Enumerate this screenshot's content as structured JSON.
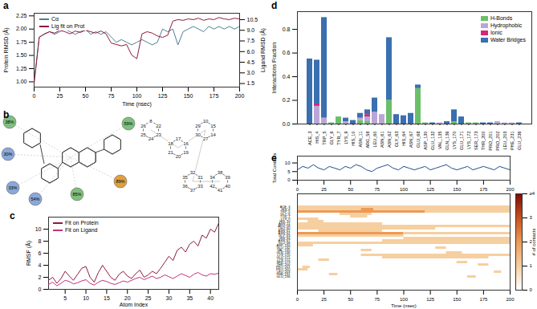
{
  "chart_data": [
    {
      "type": "line",
      "title": "a",
      "x": [
        0,
        5,
        10,
        15,
        20,
        25,
        30,
        35,
        40,
        45,
        50,
        55,
        60,
        65,
        70,
        75,
        80,
        85,
        90,
        95,
        100,
        105,
        110,
        115,
        120,
        125,
        130,
        135,
        140,
        145,
        150,
        155,
        160,
        165,
        170,
        175,
        180,
        185,
        190,
        195,
        200
      ],
      "xlim": [
        0,
        200
      ],
      "xticks": [
        0,
        25,
        50,
        75,
        100,
        125,
        150,
        175,
        200
      ],
      "xlabel": "Time (nsec)",
      "ylabel": "Protein RMSD (Å)",
      "ylim": [
        0.9,
        2.3
      ],
      "yticks": [
        {
          "value": 1,
          "label": "1.00"
        },
        {
          "value": 1.25,
          "label": "1.25"
        },
        {
          "value": 1.5,
          "label": "1.50"
        },
        {
          "value": 1.75,
          "label": "1.75"
        },
        {
          "value": 2,
          "label": "2.00"
        },
        {
          "value": 2.25,
          "label": "2.25"
        }
      ],
      "y2label": "Ligand RMSD (Å)",
      "y2lim": [
        1,
        11.4
      ],
      "y2ticks": [
        1.5,
        {
          "value": 3,
          "label": "3.0"
        },
        4.5,
        {
          "value": 6,
          "label": "6.0"
        },
        7.5,
        {
          "value": 9,
          "label": "9.0"
        },
        10.5
      ],
      "legend": "top-left",
      "series": [
        {
          "name": "Cα",
          "color": "#4d7f91",
          "values": [
            1.0,
            1.85,
            1.9,
            1.95,
            1.9,
            1.95,
            2.0,
            1.95,
            1.9,
            1.95,
            2.0,
            1.9,
            1.95,
            1.9,
            1.95,
            1.85,
            1.75,
            1.8,
            1.75,
            1.7,
            1.75,
            1.8,
            1.75,
            1.7,
            1.75,
            2.0,
            1.95,
            2.0,
            1.7,
            1.95,
            2.0,
            2.05,
            2.0,
            1.95,
            2.05,
            2.0,
            2.05,
            2.0,
            2.05,
            2.0,
            2.05
          ]
        },
        {
          "name": "Lig fit on Prot",
          "color": "#8e1a40",
          "axis": "y2",
          "values": [
            1.5,
            8.0,
            8.5,
            8.8,
            8.6,
            9.0,
            8.8,
            8.5,
            8.9,
            8.7,
            9.0,
            8.8,
            8.6,
            8.9,
            8.5,
            7.2,
            7.0,
            6.8,
            7.0,
            5.5,
            5.0,
            8.5,
            8.8,
            8.6,
            8.2,
            8.0,
            8.3,
            10.3,
            10.5,
            10.4,
            10.6,
            10.5,
            10.7,
            10.4,
            10.6,
            10.5,
            10.8,
            10.6,
            10.5,
            10.7,
            10.6
          ]
        }
      ]
    },
    {
      "type": "line",
      "title": "c",
      "x": [
        1,
        2,
        3,
        4,
        5,
        6,
        7,
        8,
        9,
        10,
        11,
        12,
        13,
        14,
        15,
        16,
        17,
        18,
        19,
        20,
        21,
        22,
        23,
        24,
        25,
        26,
        27,
        28,
        29,
        30,
        31,
        32,
        33,
        34,
        35,
        36,
        37,
        38,
        39,
        40,
        41,
        42
      ],
      "xlim": [
        1,
        42
      ],
      "xticks": [
        5,
        10,
        15,
        20,
        25,
        30,
        35,
        40
      ],
      "xlabel": "Atom Index",
      "ylabel": "RMSF (Å)",
      "ylim": [
        0,
        12
      ],
      "yticks": [
        0,
        2,
        4,
        6,
        8,
        10
      ],
      "legend": "top-left",
      "series": [
        {
          "name": "Fit on Protein",
          "color": "#8e1a40",
          "values": [
            1.5,
            2.0,
            1.0,
            1.8,
            3.0,
            2.2,
            1.5,
            2.5,
            3.5,
            3.8,
            2.0,
            1.2,
            2.8,
            4.0,
            3.0,
            2.0,
            1.5,
            2.5,
            3.0,
            2.2,
            1.8,
            2.6,
            3.2,
            2.0,
            2.4,
            3.0,
            2.6,
            3.5,
            4.5,
            5.5,
            4.8,
            6.5,
            7.0,
            6.2,
            7.5,
            8.0,
            7.2,
            9.0,
            8.5,
            10.0,
            9.5,
            11.0
          ]
        },
        {
          "name": "Fit on Ligand",
          "color": "#c2307e",
          "values": [
            0.8,
            1.2,
            0.6,
            1.0,
            1.5,
            1.3,
            0.9,
            1.1,
            1.4,
            1.6,
            1.0,
            0.7,
            1.2,
            1.5,
            1.3,
            1.0,
            0.8,
            1.1,
            1.4,
            1.2,
            1.5,
            1.8,
            2.0,
            1.6,
            1.9,
            2.2,
            1.8,
            2.0,
            2.4,
            2.1,
            1.8,
            2.2,
            2.6,
            2.3,
            2.0,
            2.5,
            2.8,
            2.4,
            2.2,
            2.6,
            2.5,
            2.7
          ]
        }
      ]
    },
    {
      "type": "bar",
      "title": "d",
      "stacked": true,
      "categories": [
        "ACE_3",
        "HIS_4",
        "TRP_5",
        "GLY_6",
        "TYR_7",
        "LYS_9",
        "HIS_10",
        "ASN_11",
        "ARG_58",
        "LEU_60",
        "ASN_61",
        "ASN_62",
        "GLY_63",
        "HIS_64",
        "ASN_67",
        "GLU_68",
        "ASP_130",
        "GLU_132",
        "VAL_135",
        "GLN_136",
        "LYS_170",
        "GLU_171",
        "LYS_172",
        "SER_173",
        "THR_200",
        "PRO_201",
        "PRO_202",
        "LEU_203",
        "PHE_231",
        "GLU_236"
      ],
      "ylabel": "Interactions Fraction",
      "ylim": [
        0,
        0.95
      ],
      "yticks": [
        {
          "value": 0,
          "label": "0.0"
        },
        0.2,
        0.4,
        0.6,
        0.8
      ],
      "legend": "top-right",
      "series": [
        {
          "name": "H-Bonds",
          "color": "#6abf69",
          "values": [
            0,
            0,
            0,
            0.01,
            0.06,
            0,
            0,
            0.03,
            0.02,
            0,
            0,
            0.2,
            0,
            0,
            0,
            0.3,
            0.01,
            0,
            0,
            0,
            0.02,
            0,
            0.01,
            0.01,
            0,
            0,
            0,
            0,
            0,
            0
          ]
        },
        {
          "name": "Hydrophobic",
          "color": "#b9a6d6",
          "values": [
            0,
            0.15,
            0.05,
            0,
            0,
            0.02,
            0,
            0.02,
            0.04,
            0.1,
            0.08,
            0,
            0,
            0,
            0,
            0,
            0,
            0,
            0.01,
            0,
            0,
            0,
            0,
            0,
            0,
            0,
            0.02,
            0.01,
            0.01,
            0
          ]
        },
        {
          "name": "Ionic",
          "color": "#d6257a",
          "values": [
            0,
            0.02,
            0,
            0,
            0,
            0,
            0,
            0,
            0.02,
            0,
            0,
            0,
            0,
            0,
            0,
            0,
            0,
            0,
            0,
            0,
            0,
            0,
            0,
            0,
            0,
            0,
            0,
            0,
            0,
            0
          ]
        },
        {
          "name": "Water Bridges",
          "color": "#3a6fb0",
          "values": [
            0.55,
            0.37,
            0.85,
            0,
            0,
            0.03,
            0.03,
            0.04,
            0.04,
            0.12,
            0,
            0.53,
            0.08,
            0.07,
            0.09,
            0.03,
            0,
            0.01,
            0,
            0.02,
            0.1,
            0.06,
            0,
            0,
            0.01,
            0.01,
            0,
            0,
            0,
            0.01
          ]
        }
      ]
    },
    {
      "type": "line",
      "title": "e",
      "x": [
        0,
        5,
        10,
        15,
        20,
        25,
        30,
        35,
        40,
        45,
        50,
        55,
        60,
        65,
        70,
        75,
        80,
        85,
        90,
        95,
        100,
        105,
        110,
        115,
        120,
        125,
        130,
        135,
        140,
        145,
        150,
        155,
        160,
        165,
        170,
        175,
        180,
        185,
        190,
        195,
        200
      ],
      "xlim": [
        0,
        200
      ],
      "xticks": [
        0,
        25,
        50,
        75,
        100,
        125,
        150,
        175,
        200
      ],
      "ylabel": "Total Contacts",
      "ylim": [
        0,
        14
      ],
      "yticks": [
        0,
        5,
        10
      ],
      "color": "#1f4e8c",
      "values": [
        6,
        8,
        7,
        9,
        7,
        6,
        8,
        7,
        6,
        8,
        7,
        9,
        8,
        6,
        5,
        7,
        8,
        9,
        7,
        6,
        8,
        7,
        6,
        7,
        8,
        6,
        7,
        8,
        9,
        7,
        6,
        7,
        8,
        6,
        7,
        8,
        7,
        6,
        8,
        7,
        6
      ]
    },
    {
      "type": "heatmap",
      "xlabel": "Time (nsec)",
      "xlim": [
        0,
        200
      ],
      "xticks": [
        0,
        25,
        50,
        75,
        100,
        125,
        150,
        175,
        200
      ],
      "categories": [
        "ACE_3",
        "HIS_4",
        "TRP_5",
        "GLY_6",
        "TYR_7",
        "LYS_9",
        "HIS_10",
        "ASN_11",
        "ARG_58",
        "LEU_60",
        "ASN_61",
        "ASN_62",
        "GLY_63",
        "HIS_64",
        "ASN_67",
        "GLU_68",
        "ASP_130",
        "GLU_132",
        "VAL_135",
        "GLN_136",
        "LYS_170",
        "GLU_171",
        "LYS_172",
        "SER_173",
        "THR_200",
        "PRO_201",
        "PRO_202",
        "LEU_203",
        "PHE_231",
        "GLU_236"
      ],
      "cells": [
        {
          "residue": "ACE_3",
          "start": 0,
          "end": 200,
          "count": 1
        },
        {
          "residue": "HIS_4",
          "start": 0,
          "end": 60,
          "count": 1
        },
        {
          "residue": "HIS_4",
          "start": 60,
          "end": 72,
          "count": 2
        },
        {
          "residue": "HIS_4",
          "start": 72,
          "end": 200,
          "count": 1
        },
        {
          "residue": "TRP_5",
          "start": 0,
          "end": 120,
          "count": 2
        },
        {
          "residue": "TRP_5",
          "start": 120,
          "end": 200,
          "count": 1
        },
        {
          "residue": "GLY_6",
          "start": 40,
          "end": 70,
          "count": 1
        },
        {
          "residue": "TYR_7",
          "start": 50,
          "end": 66,
          "count": 1
        },
        {
          "residue": "LYS_9",
          "start": 0,
          "end": 20,
          "count": 1
        },
        {
          "residue": "HIS_10",
          "start": 10,
          "end": 25,
          "count": 1
        },
        {
          "residue": "ASN_11",
          "start": 0,
          "end": 80,
          "count": 1
        },
        {
          "residue": "ARG_58",
          "start": 0,
          "end": 200,
          "count": 1
        },
        {
          "residue": "LEU_60",
          "start": 0,
          "end": 130,
          "count": 1
        },
        {
          "residue": "ASN_61",
          "start": 20,
          "end": 80,
          "count": 1
        },
        {
          "residue": "ASN_62",
          "start": 0,
          "end": 100,
          "count": 2
        },
        {
          "residue": "ASN_62",
          "start": 100,
          "end": 200,
          "count": 1
        },
        {
          "residue": "GLY_63",
          "start": 0,
          "end": 100,
          "count": 1
        },
        {
          "residue": "HIS_64",
          "start": 100,
          "end": 200,
          "count": 1
        },
        {
          "residue": "ASN_67",
          "start": 80,
          "end": 200,
          "count": 1
        },
        {
          "residue": "GLU_68",
          "start": 0,
          "end": 200,
          "count": 1
        },
        {
          "residue": "ASP_130",
          "start": 0,
          "end": 15,
          "count": 1
        },
        {
          "residue": "GLU_132",
          "start": 130,
          "end": 140,
          "count": 1
        },
        {
          "residue": "VAL_135",
          "start": 60,
          "end": 70,
          "count": 1
        },
        {
          "residue": "GLN_136",
          "start": 140,
          "end": 155,
          "count": 1
        },
        {
          "residue": "LYS_170",
          "start": 60,
          "end": 200,
          "count": 1
        },
        {
          "residue": "GLU_171",
          "start": 80,
          "end": 180,
          "count": 1
        },
        {
          "residue": "LYS_172",
          "start": 20,
          "end": 30,
          "count": 1
        },
        {
          "residue": "SER_173",
          "start": 150,
          "end": 160,
          "count": 1
        },
        {
          "residue": "THR_200",
          "start": 170,
          "end": 180,
          "count": 1
        },
        {
          "residue": "PRO_201",
          "start": 5,
          "end": 12,
          "count": 1
        },
        {
          "residue": "PRO_202",
          "start": 0,
          "end": 10,
          "count": 1
        },
        {
          "residue": "LEU_203",
          "start": 185,
          "end": 192,
          "count": 1
        },
        {
          "residue": "PHE_231",
          "start": 30,
          "end": 38,
          "count": 1
        },
        {
          "residue": "GLU_236",
          "start": 160,
          "end": 168,
          "count": 1
        }
      ],
      "colorbar": {
        "label": "# of contacts",
        "range": [
          0,
          4
        ],
        "ticks": [
          0,
          1,
          2,
          3,
          {
            "value": 4,
            "label": "≥4"
          }
        ],
        "colors": [
          "#ffffff",
          "#f6cfa0",
          "#ec9a55",
          "#c8501e",
          "#7a0a0a"
        ]
      }
    }
  ],
  "diagram": {
    "title": "b",
    "percentages": [
      "38%",
      "30%",
      "33%",
      "54%",
      "85%",
      "89%",
      "59%"
    ],
    "atom_rings": [
      [
        "8",
        "22",
        "23",
        "24",
        "25",
        "26"
      ],
      [
        "17",
        "16",
        "19",
        "20",
        "21",
        "18"
      ],
      [
        "10",
        "15",
        "14",
        "27",
        "30",
        "29"
      ],
      [
        "32",
        "31",
        "33",
        "37",
        "36",
        "35"
      ],
      [
        "38",
        "39",
        "40",
        "41",
        "42",
        "34"
      ]
    ]
  }
}
